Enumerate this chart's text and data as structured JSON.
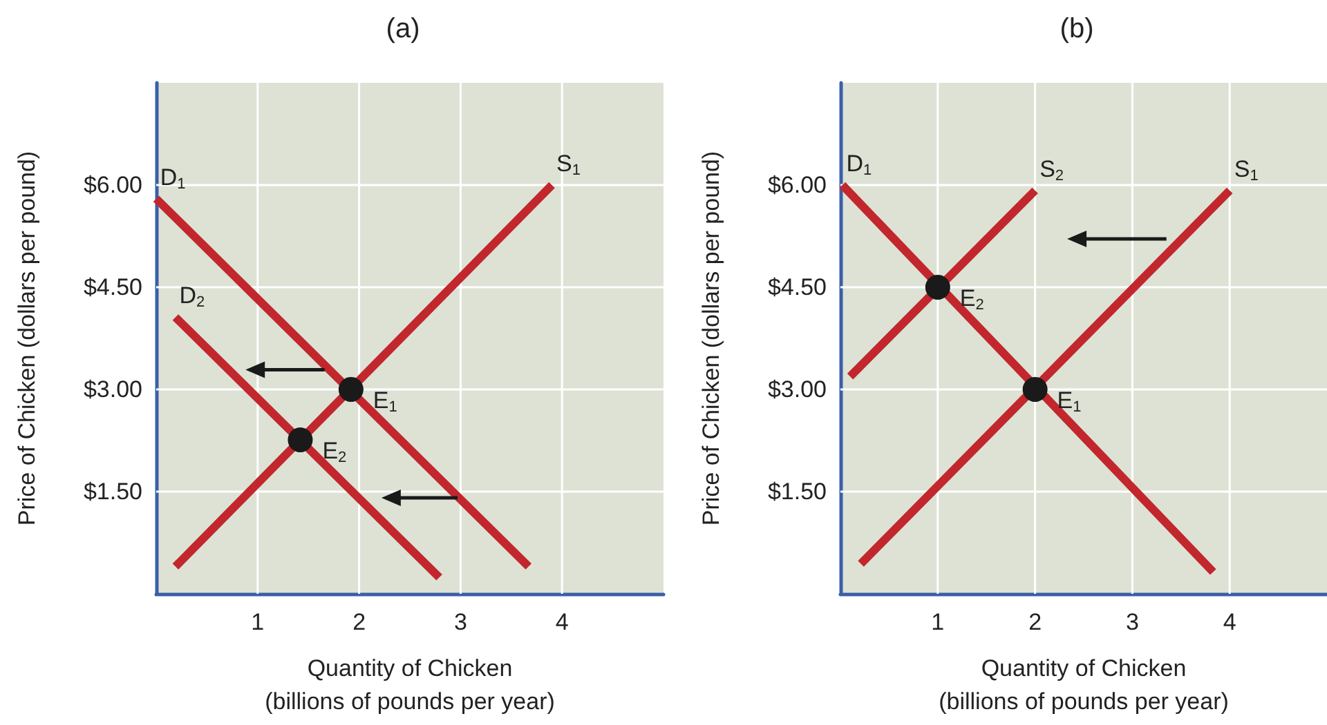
{
  "chart_data": [
    {
      "type": "line",
      "title": "(a)",
      "xlabel": "Quantity of Chicken\n(billions of pounds per year)",
      "ylabel": "Price of Chicken (dollars per pound)",
      "xlim": [
        0,
        5
      ],
      "ylim": [
        0,
        7.5
      ],
      "xticks": [
        1,
        2,
        3,
        4
      ],
      "yticks": [
        {
          "value": 1.5,
          "label": "$1.50"
        },
        {
          "value": 3,
          "label": "$3.00"
        },
        {
          "value": 4.5,
          "label": "$4.50"
        },
        {
          "value": 6,
          "label": "$6.00"
        }
      ],
      "grid": true,
      "series": [
        {
          "name": "D$_{1}$",
          "color": "#c1272d",
          "x": [
            0,
            3.67
          ],
          "values": [
            5.8,
            0.4
          ]
        },
        {
          "name": "S$_{1}$",
          "color": "#c1272d",
          "x": [
            0.19,
            3.9
          ],
          "values": [
            0.4,
            6.0
          ]
        },
        {
          "name": "D$_{2}$",
          "color": "#c1272d",
          "x": [
            0.19,
            2.79
          ],
          "values": [
            4.06,
            0.24
          ]
        },
        {
          "name": "E$_{1}$",
          "type": "scatter",
          "marker": "circle",
          "color": "#1a1a1a",
          "x": [
            1.92
          ],
          "values": [
            3.0
          ]
        },
        {
          "name": "E$_{2}$",
          "type": "scatter",
          "marker": "circle",
          "color": "#1a1a1a",
          "x": [
            1.42
          ],
          "values": [
            2.26
          ]
        }
      ]
    },
    {
      "type": "line",
      "title": "(b)",
      "xlabel": "Quantity of Chicken\n(billions of pounds per year)",
      "ylabel": "Price of Chicken (dollars per pound)",
      "xlim": [
        0,
        5
      ],
      "ylim": [
        0,
        7.5
      ],
      "xticks": [
        1,
        2,
        3,
        4
      ],
      "yticks": [
        {
          "value": 1.5,
          "label": "$1.50"
        },
        {
          "value": 3,
          "label": "$3.00"
        },
        {
          "value": 4.5,
          "label": "$4.50"
        },
        {
          "value": 6,
          "label": "$6.00"
        }
      ],
      "grid": true,
      "series": [
        {
          "name": "D$_{1}$",
          "color": "#c1272d",
          "x": [
            0.02,
            3.83
          ],
          "values": [
            6.0,
            0.32
          ]
        },
        {
          "name": "S$_{1}$",
          "color": "#c1272d",
          "x": [
            0.21,
            4.0
          ],
          "values": [
            0.44,
            5.92
          ]
        },
        {
          "name": "S$_{2}$",
          "color": "#c1272d",
          "x": [
            0.1,
            2.0
          ],
          "values": [
            3.19,
            5.92
          ]
        },
        {
          "name": "E$_{1}$",
          "type": "scatter",
          "marker": "circle",
          "color": "#1a1a1a",
          "x": [
            2
          ],
          "values": [
            3.0
          ]
        },
        {
          "name": "E$_{2}$",
          "type": "scatter",
          "marker": "circle",
          "color": "#1a1a1a",
          "x": [
            1
          ],
          "values": [
            4.5
          ]
        }
      ]
    }
  ]
}
